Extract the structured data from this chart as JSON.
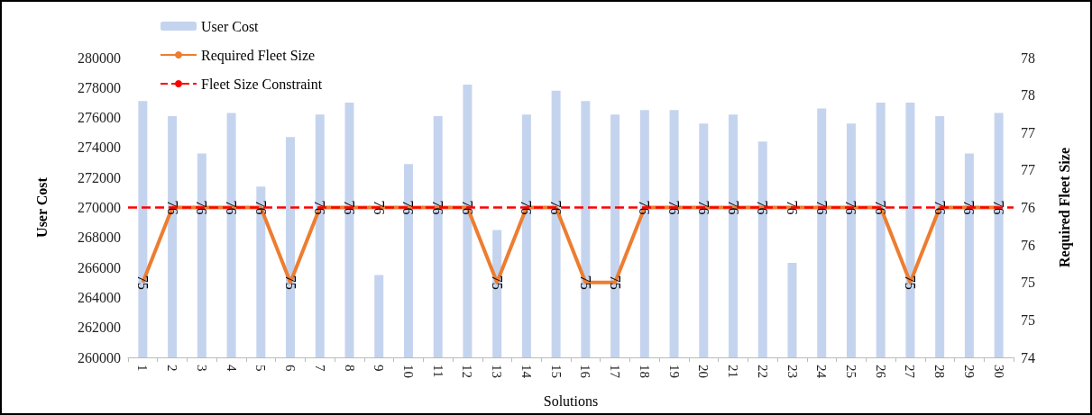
{
  "chart_data": {
    "type": "bar",
    "xlabel": "Solutions",
    "ylabel": "User Cost",
    "y2label": "Required Fleet Size",
    "categories": [
      "1",
      "2",
      "3",
      "4",
      "5",
      "6",
      "7",
      "8",
      "9",
      "10",
      "11",
      "12",
      "13",
      "14",
      "15",
      "16",
      "17",
      "18",
      "19",
      "20",
      "21",
      "22",
      "23",
      "24",
      "25",
      "26",
      "27",
      "28",
      "29",
      "30"
    ],
    "series": [
      {
        "name": "User Cost",
        "color": "#c5d4ee",
        "values": [
          277100,
          276100,
          273600,
          276300,
          271400,
          274700,
          276200,
          277000,
          265500,
          272900,
          276100,
          278200,
          268500,
          276200,
          277800,
          277100,
          276200,
          276500,
          276500,
          275600,
          276200,
          274400,
          266300,
          276600,
          275600,
          277000,
          277000,
          276100,
          273600,
          276300
        ]
      },
      {
        "name": "Required Fleet Size",
        "type": "line",
        "axis": "y2",
        "color": "#ed7d31",
        "data_labels": true,
        "values": [
          75,
          76,
          76,
          76,
          76,
          75,
          76,
          76,
          76,
          76,
          76,
          76,
          75,
          76,
          76,
          75,
          75,
          76,
          76,
          76,
          76,
          76,
          76,
          76,
          76,
          76,
          75,
          76,
          76,
          76
        ]
      }
    ],
    "ref_lines": [
      {
        "axis": "y2",
        "value": 76,
        "label": "Fleet Size Constraint",
        "color": "#ff0000",
        "line_style": "dashed"
      }
    ],
    "ylim": [
      260000,
      280000
    ],
    "yticks": [
      260000,
      262000,
      264000,
      266000,
      268000,
      270000,
      272000,
      274000,
      276000,
      278000,
      280000
    ],
    "y2lim": [
      74,
      78
    ],
    "y2ticks": [
      74,
      {
        "value": 74.5,
        "label": "75"
      },
      75,
      {
        "value": 75.5,
        "label": "76"
      },
      76,
      {
        "value": 76.5,
        "label": "77"
      },
      77,
      {
        "value": 77.5,
        "label": "78"
      },
      78
    ],
    "legend": "top left",
    "grid": false
  }
}
